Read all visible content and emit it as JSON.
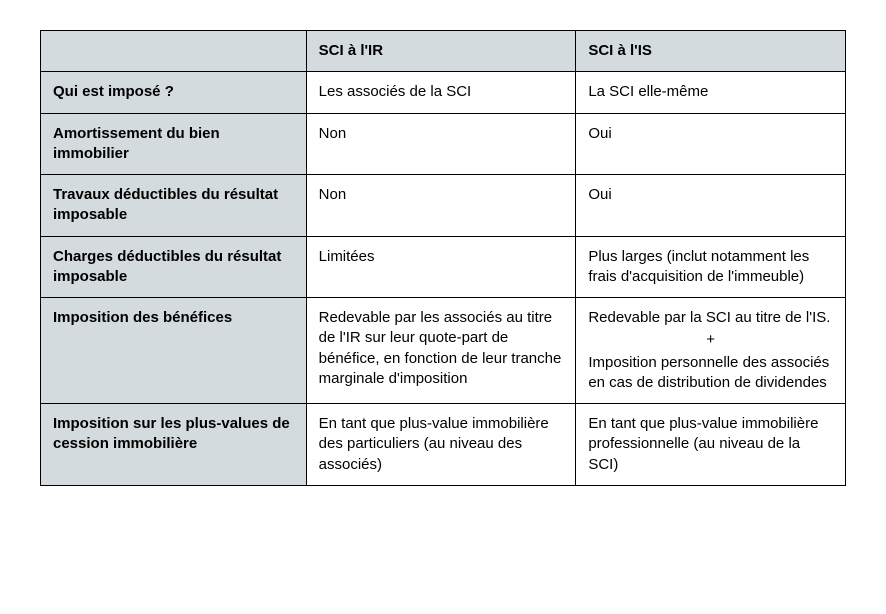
{
  "table": {
    "background_header": "#d3dbde",
    "border_color": "#000000",
    "font_size_pt": 11,
    "columns": [
      {
        "label": "",
        "width_pct": 33
      },
      {
        "label": "SCI à l'IR",
        "width_pct": 33.5
      },
      {
        "label": "SCI à l'IS",
        "width_pct": 33.5
      }
    ],
    "rows": [
      {
        "label": "Qui est imposé ?",
        "ir": "Les associés de la SCI",
        "is": "La SCI elle-même"
      },
      {
        "label": "Amortissement du bien immobilier",
        "ir": "Non",
        "is": "Oui"
      },
      {
        "label": "Travaux déductibles du résultat imposable",
        "ir": "Non",
        "is": "Oui"
      },
      {
        "label": "Charges déductibles du résultat imposable",
        "ir": "Limitées",
        "is": "Plus larges (inclut notamment les frais d'acquisition de l'immeuble)"
      },
      {
        "label": "Imposition des bénéfices",
        "ir": "Redevable par les associés au titre de l'IR sur leur quote-part de bénéfice, en fonction de leur tranche marginale d'imposition",
        "is_line1": "Redevable par la SCI au titre de l'IS.",
        "is_plus": "+",
        "is_line2": "Imposition personnelle des associés en cas de distribution de dividendes"
      },
      {
        "label": "Imposition sur les plus-values de cession immobilière",
        "ir": "En tant que plus-value immobilière des particuliers (au niveau des associés)",
        "is": "En tant que plus-value immobilière professionnelle (au niveau de la SCI)"
      }
    ]
  }
}
